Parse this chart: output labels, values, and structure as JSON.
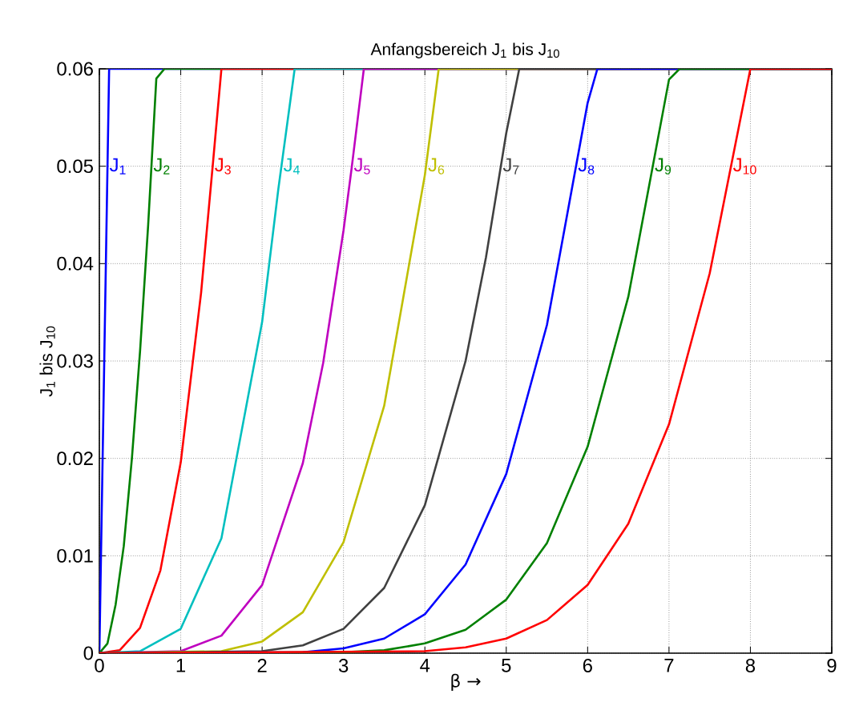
{
  "chart_data": {
    "type": "line",
    "title": "Anfangsbereich J$_{1}$ bis J$_{10}$",
    "xlabel": "β →",
    "ylabel": "J$_{1}$ bis J$_{10}$",
    "xlim": [
      0,
      9
    ],
    "ylim": [
      0,
      0.06
    ],
    "xticks": [
      0,
      1,
      2,
      3,
      4,
      5,
      6,
      7,
      8,
      9
    ],
    "yticks": [
      0,
      0.01,
      0.02,
      0.03,
      0.04,
      0.05,
      0.06
    ],
    "grid": true,
    "legend": false,
    "line_style": "solid",
    "series": [
      {
        "name": "J$_{1}$",
        "color": "#0000ff",
        "x": [
          0,
          0.05,
          0.1,
          0.12,
          9
        ],
        "values": [
          0,
          0.025,
          0.05,
          0.06,
          0.06
        ]
      },
      {
        "name": "J$_{2}$",
        "color": "#008000",
        "x": [
          0,
          0.1,
          0.2,
          0.3,
          0.4,
          0.5,
          0.6,
          0.7,
          0.8,
          9
        ],
        "values": [
          0,
          0.001,
          0.005,
          0.011,
          0.02,
          0.031,
          0.044,
          0.059,
          0.06,
          0.06
        ]
      },
      {
        "name": "J$_{3}$",
        "color": "#ff0000",
        "x": [
          0,
          0.25,
          0.5,
          0.75,
          1,
          1.25,
          1.4,
          1.5,
          9
        ],
        "values": [
          0,
          0.0003,
          0.0026,
          0.0085,
          0.0196,
          0.037,
          0.0507,
          0.06,
          0.06
        ]
      },
      {
        "name": "J$_{4}$",
        "color": "#00bfbf",
        "x": [
          0,
          0.5,
          1,
          1.5,
          2,
          2.2,
          2.4,
          9
        ],
        "values": [
          0,
          0.0002,
          0.0025,
          0.0118,
          0.034,
          0.0477,
          0.06,
          0.06
        ]
      },
      {
        "name": "J$_{5}$",
        "color": "#bf00bf",
        "x": [
          0,
          1,
          1.5,
          2,
          2.5,
          2.75,
          3,
          3.1,
          3.25,
          9
        ],
        "values": [
          0,
          0.0002,
          0.0018,
          0.007,
          0.0195,
          0.0298,
          0.0434,
          0.0498,
          0.06,
          0.06
        ]
      },
      {
        "name": "J$_{6}$",
        "color": "#bfbf00",
        "x": [
          0,
          1.5,
          2,
          2.5,
          3,
          3.5,
          4,
          4.17,
          9
        ],
        "values": [
          0,
          0.0002,
          0.0012,
          0.0042,
          0.0114,
          0.0254,
          0.0491,
          0.06,
          0.06
        ]
      },
      {
        "name": "J$_{7}$",
        "color": "#404040",
        "x": [
          0,
          2,
          2.5,
          3,
          3.5,
          4,
          4.5,
          4.75,
          5,
          5.16,
          9
        ],
        "values": [
          0,
          0.0002,
          0.0008,
          0.0025,
          0.0067,
          0.0152,
          0.03,
          0.0406,
          0.0534,
          0.06,
          0.06
        ]
      },
      {
        "name": "J$_{8}$",
        "color": "#0000ff",
        "x": [
          0,
          2.5,
          3,
          3.5,
          4,
          4.5,
          5,
          5.5,
          6,
          6.12,
          9
        ],
        "values": [
          0,
          0.0001,
          0.0005,
          0.0015,
          0.004,
          0.0091,
          0.0184,
          0.0337,
          0.0565,
          0.06,
          0.06
        ]
      },
      {
        "name": "J$_{9}$",
        "color": "#008000",
        "x": [
          0,
          3,
          3.5,
          4,
          4.5,
          5,
          5.5,
          6,
          6.5,
          7,
          7.13,
          9
        ],
        "values": [
          0,
          0.0001,
          0.0003,
          0.001,
          0.0024,
          0.0055,
          0.0113,
          0.0212,
          0.0366,
          0.0589,
          0.06,
          0.06
        ]
      },
      {
        "name": "J$_{10}$",
        "color": "#ff0000",
        "x": [
          0,
          4,
          4.5,
          5,
          5.5,
          6,
          6.5,
          7,
          7.5,
          8,
          9
        ],
        "values": [
          0,
          0.0002,
          0.0006,
          0.0015,
          0.0034,
          0.007,
          0.0133,
          0.0235,
          0.039,
          0.06,
          0.06
        ]
      }
    ]
  }
}
